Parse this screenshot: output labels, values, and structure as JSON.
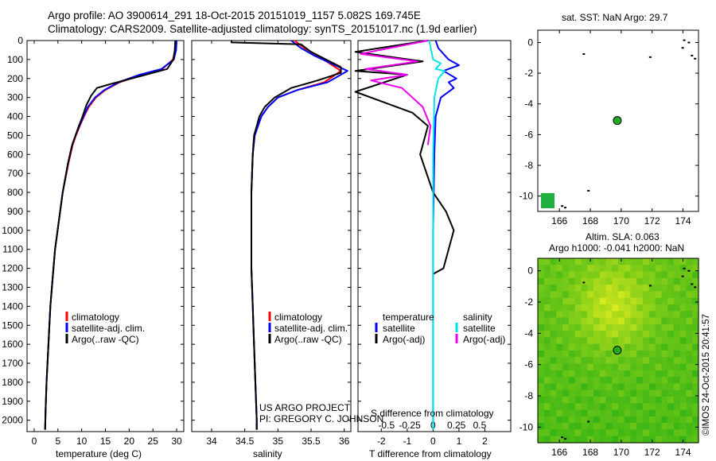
{
  "header": {
    "line1": "Argo profile: AO 3900614_291 18-Oct-2015 20151019_1157 5.082S 169.745E",
    "line2": "Climatology: CARS2009. Satellite-adjusted climatology: synTS_20151017.nc (1.9d earlier)"
  },
  "colors": {
    "climatology": "#ff0000",
    "satellite": "#0000ff",
    "argo": "#000000",
    "salinity_satellite": "#00e5e5",
    "salinity_argo": "#ee00ee",
    "map_land": "#000000",
    "float_marker": "#22aa22"
  },
  "depth_axis": {
    "ticks": [
      0,
      100,
      200,
      300,
      400,
      500,
      600,
      700,
      800,
      900,
      1000,
      1100,
      1200,
      1300,
      1400,
      1500,
      1600,
      1700,
      1800,
      1900,
      2000
    ],
    "range": [
      0,
      2060
    ]
  },
  "temperature_panel": {
    "xlabel": "temperature (deg C)",
    "xticks": [
      "0",
      "5",
      "10",
      "15",
      "20",
      "25",
      "30"
    ],
    "legend": {
      "climatology": "climatology",
      "satellite": "satellite-adj. clim.",
      "argo": "Argo(..raw -QC)"
    }
  },
  "salinity_panel": {
    "xlabel": "salinity",
    "xticks": [
      "34",
      "34.5",
      "35",
      "35.5",
      "36"
    ],
    "legend": {
      "climatology": "climatology",
      "satellite": "satellite-adj. clim.",
      "argo": "Argo(..raw -QC)"
    },
    "project_line1": "US ARGO PROJECT",
    "project_line2": "PI: GREGORY C. JOHNSON"
  },
  "difference_panel": {
    "top_label": "S difference from climatology",
    "top_ticks": [
      "-0.5",
      "-0.25",
      "0",
      "0.25",
      "0.5"
    ],
    "bottom_ticks": [
      "-2",
      "-1",
      "0",
      "1",
      "2"
    ],
    "xlabel": "T difference from climatology",
    "legend": {
      "temp_title": "temperature",
      "temp_sat": "satellite",
      "temp_argo": "Argo(-adj)",
      "sal_title": "salinity",
      "sal_sat": "satellite",
      "sal_argo": "Argo(-adj)"
    }
  },
  "sst_map": {
    "title": "sat. SST: NaN Argo: 29.7",
    "yticks": [
      "0",
      "-2",
      "-4",
      "-6",
      "-8",
      "-10"
    ],
    "xticks": [
      "166",
      "168",
      "170",
      "172",
      "174"
    ],
    "float_lon": 169.745,
    "float_lat": -5.082
  },
  "sla_map": {
    "title1": "Altim. SLA: 0.063",
    "title2": "Argo h1000: -0.041 h2000: NaN",
    "yticks": [
      "0",
      "-2",
      "-4",
      "-6",
      "-8",
      "-10"
    ],
    "xticks": [
      "166",
      "168",
      "170",
      "172",
      "174"
    ]
  },
  "credit": "©IMOS 24-Oct-2015 20:41:57",
  "chart_data": [
    {
      "type": "line",
      "title": "temperature",
      "xlabel": "temperature (deg C)",
      "ylabel": "depth",
      "xlim": [
        -1.5,
        31.5
      ],
      "ylim": [
        2060,
        0
      ],
      "series": [
        {
          "name": "climatology",
          "x": [
            29.8,
            29.7,
            29.2,
            27.0,
            22.5,
            18.0,
            15.0,
            13.0,
            11.5,
            10.5,
            9.6,
            8.8,
            8.1,
            7.2,
            6.0,
            5.2,
            4.4,
            3.9,
            3.4,
            3.0,
            2.6,
            2.4,
            2.3
          ],
          "y": [
            0,
            50,
            100,
            150,
            180,
            220,
            260,
            300,
            350,
            400,
            450,
            500,
            550,
            650,
            800,
            950,
            1100,
            1250,
            1400,
            1600,
            1800,
            1950,
            2050
          ]
        },
        {
          "name": "satellite-adj. clim.",
          "x": [
            30.0,
            29.9,
            29.4,
            26.8,
            22.2,
            17.8,
            14.8,
            12.8,
            11.3,
            10.4,
            9.5,
            8.7,
            8.0,
            7.1,
            6.0,
            5.2,
            4.4,
            3.9,
            3.4,
            3.0,
            2.6,
            2.4,
            2.3
          ],
          "y": [
            0,
            50,
            100,
            150,
            180,
            220,
            260,
            300,
            350,
            400,
            450,
            500,
            550,
            650,
            800,
            950,
            1100,
            1250,
            1400,
            1600,
            1800,
            1950,
            2050
          ]
        },
        {
          "name": "Argo(..raw -QC)",
          "x": [
            29.7,
            29.6,
            29.3,
            28.0,
            22.0,
            16.0,
            13.2,
            12.0,
            11.0,
            10.2,
            9.4,
            8.7,
            8.0,
            7.1,
            6.0,
            5.2,
            4.4,
            3.9,
            3.4,
            3.0,
            2.6,
            2.4,
            2.3
          ],
          "y": [
            0,
            50,
            100,
            150,
            190,
            230,
            250,
            290,
            340,
            400,
            450,
            500,
            550,
            650,
            800,
            950,
            1100,
            1250,
            1400,
            1600,
            1800,
            1950,
            2050
          ]
        }
      ]
    },
    {
      "type": "line",
      "title": "salinity",
      "xlabel": "salinity",
      "ylabel": "depth",
      "xlim": [
        33.7,
        36.1
      ],
      "ylim": [
        2060,
        0
      ],
      "series": [
        {
          "name": "climatology",
          "x": [
            35.25,
            35.4,
            35.6,
            35.95,
            35.7,
            35.3,
            35.0,
            34.85,
            34.75,
            34.7,
            34.65,
            34.62,
            34.6,
            34.6,
            34.6,
            34.62,
            34.64,
            34.66,
            34.68,
            34.68
          ],
          "y": [
            0,
            40,
            80,
            160,
            220,
            260,
            300,
            350,
            400,
            450,
            500,
            600,
            800,
            1000,
            1200,
            1400,
            1600,
            1800,
            2000,
            2050
          ]
        },
        {
          "name": "satellite-adj. clim.",
          "x": [
            35.2,
            35.35,
            35.55,
            36.05,
            35.75,
            35.3,
            35.0,
            34.85,
            34.75,
            34.7,
            34.65,
            34.62,
            34.6,
            34.6,
            34.6,
            34.62,
            34.64,
            34.66,
            34.68,
            34.68
          ],
          "y": [
            0,
            40,
            80,
            160,
            220,
            260,
            300,
            350,
            400,
            450,
            500,
            600,
            800,
            1000,
            1200,
            1400,
            1600,
            1800,
            2000,
            2050
          ]
        },
        {
          "name": "Argo(..raw -QC)",
          "x": [
            34.3,
            34.3,
            35.35,
            35.5,
            35.95,
            35.95,
            35.6,
            35.2,
            34.95,
            34.8,
            34.72,
            34.68,
            34.64,
            34.62,
            34.6,
            34.6,
            34.6,
            34.62,
            34.64,
            34.66,
            34.68,
            34.68
          ],
          "y": [
            0,
            10,
            20,
            60,
            140,
            170,
            210,
            250,
            300,
            350,
            400,
            450,
            500,
            600,
            800,
            1000,
            1200,
            1400,
            1600,
            1800,
            2000,
            2050
          ]
        }
      ]
    },
    {
      "type": "line",
      "title": "difference from climatology",
      "xlabel": "T difference from climatology",
      "ylabel": "depth",
      "xlim": [
        -2.9,
        3.0
      ],
      "ylim": [
        2060,
        0
      ],
      "series": [
        {
          "name": "temperature satellite",
          "x": [
            0.1,
            0.2,
            0.6,
            1.0,
            0.4,
            0.9,
            0.6,
            0.8,
            0.3,
            0.1,
            0.05,
            0.0,
            0.0,
            0.0
          ],
          "y": [
            0,
            40,
            100,
            130,
            160,
            200,
            220,
            250,
            300,
            400,
            600,
            1000,
            1500,
            2050
          ]
        },
        {
          "name": "temperature Argo(-adj)",
          "x": [
            -0.2,
            -3.0,
            -0.4,
            -3.0,
            -1.0,
            -3.0,
            -0.8,
            -0.2,
            -0.5,
            0.0,
            0.5,
            0.8,
            0.6,
            0.4,
            0.0
          ],
          "y": [
            0,
            60,
            110,
            160,
            180,
            270,
            380,
            450,
            600,
            800,
            900,
            1000,
            1100,
            1200,
            1230
          ]
        },
        {
          "name": "salinity satellite",
          "x": [
            -0.15,
            0.0,
            0.3,
            0.1,
            0.45,
            0.2,
            0.05,
            0.0,
            0.0,
            0.0
          ],
          "y": [
            0,
            100,
            120,
            150,
            160,
            200,
            300,
            600,
            1200,
            2050
          ]
        },
        {
          "name": "salinity Argo(-adj)",
          "x": [
            -0.2,
            -2.8,
            -0.6,
            -2.6,
            -1.0,
            -2.4,
            -1.2,
            -0.4,
            -0.1,
            -0.2
          ],
          "y": [
            0,
            70,
            110,
            150,
            180,
            210,
            250,
            350,
            450,
            550
          ]
        }
      ]
    }
  ]
}
